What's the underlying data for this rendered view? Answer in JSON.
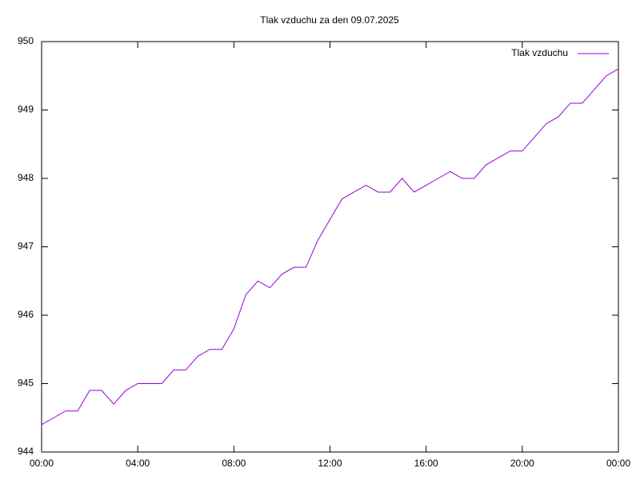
{
  "chart_data": {
    "type": "line",
    "title": "Tlak vzduchu za den 09.07.2025",
    "x": [
      0,
      0.5,
      1,
      1.5,
      2,
      2.5,
      3,
      3.5,
      4,
      4.5,
      5,
      5.5,
      6,
      6.5,
      7,
      7.5,
      8,
      8.5,
      9,
      9.5,
      10,
      10.5,
      11,
      11.5,
      12,
      12.5,
      13,
      13.5,
      14,
      14.5,
      15,
      15.5,
      16,
      16.5,
      17,
      17.5,
      18,
      18.5,
      19,
      19.5,
      20,
      20.5,
      21,
      21.5,
      22,
      22.5,
      23,
      23.5,
      24
    ],
    "series": [
      {
        "name": "Tlak vzduchu",
        "color": "#9400d3",
        "values": [
          944.4,
          944.5,
          944.6,
          944.6,
          944.9,
          944.9,
          944.7,
          944.9,
          945.0,
          945.0,
          945.0,
          945.2,
          945.2,
          945.4,
          945.5,
          945.5,
          945.8,
          946.3,
          946.5,
          946.4,
          946.6,
          946.7,
          946.7,
          947.1,
          947.4,
          947.7,
          947.8,
          947.9,
          947.8,
          947.8,
          948.0,
          947.8,
          947.9,
          948.0,
          948.1,
          948.0,
          948.0,
          948.2,
          948.3,
          948.4,
          948.4,
          948.6,
          948.8,
          948.9,
          949.1,
          949.1,
          949.3,
          949.5,
          949.6
        ]
      }
    ],
    "xlim": [
      0,
      24
    ],
    "xticks": [
      {
        "value": 0,
        "label": "00:00"
      },
      {
        "value": 4,
        "label": "04:00"
      },
      {
        "value": 8,
        "label": "08:00"
      },
      {
        "value": 12,
        "label": "12:00"
      },
      {
        "value": 16,
        "label": "16:00"
      },
      {
        "value": 20,
        "label": "20:00"
      },
      {
        "value": 24,
        "label": "00:00"
      }
    ],
    "ylim": [
      944,
      950
    ],
    "yticks": [
      944,
      945,
      946,
      947,
      948,
      949,
      950
    ],
    "legend": "top-right"
  }
}
